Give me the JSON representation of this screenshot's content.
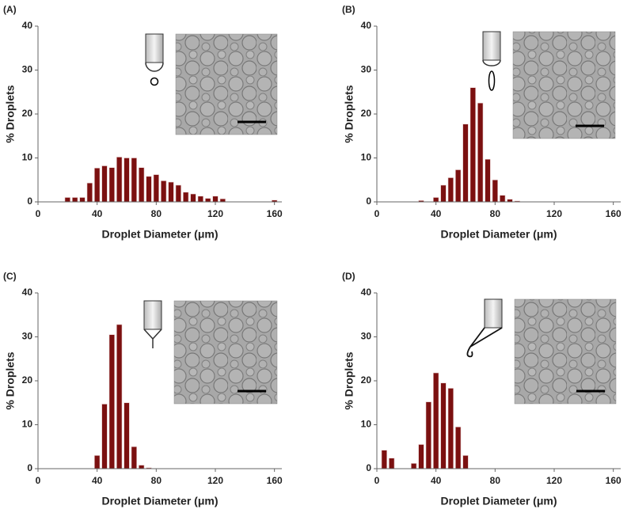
{
  "chart_data": [
    {
      "type": "bar",
      "title": "(A)",
      "xlabel": "Droplet Diameter (μm)",
      "ylabel": "% Droplets",
      "color": "#7b1010",
      "x": [
        20,
        25,
        30,
        35,
        40,
        45,
        50,
        55,
        60,
        65,
        70,
        75,
        80,
        85,
        90,
        95,
        100,
        105,
        110,
        115,
        120,
        125,
        160
      ],
      "values": [
        1,
        1,
        1,
        4.3,
        7.7,
        8.2,
        7.8,
        10.2,
        10,
        10,
        7.8,
        5.8,
        6.2,
        4.8,
        4.5,
        3.8,
        2.2,
        1.8,
        1.3,
        0.8,
        1.3,
        0.7,
        0.4
      ],
      "xlim": [
        0,
        165
      ],
      "ylim": [
        0,
        40
      ],
      "xticks": [
        0,
        40,
        80,
        120,
        160
      ],
      "yticks": [
        0,
        10,
        20,
        30,
        40
      ]
    },
    {
      "type": "bar",
      "title": "(B)",
      "xlabel": "Droplet Diameter (μm)",
      "ylabel": "% Droplets",
      "color": "#7b1010",
      "x": [
        30,
        40,
        45,
        50,
        55,
        60,
        65,
        70,
        75,
        80,
        85,
        90,
        95
      ],
      "values": [
        0.3,
        1,
        3.8,
        5.5,
        7.3,
        17.7,
        26,
        22.5,
        9.7,
        5,
        1.5,
        0.6,
        0.2
      ],
      "xlim": [
        0,
        165
      ],
      "ylim": [
        0,
        40
      ],
      "xticks": [
        0,
        40,
        80,
        120,
        160
      ],
      "yticks": [
        0,
        10,
        20,
        30,
        40
      ]
    },
    {
      "type": "bar",
      "title": "(C)",
      "xlabel": "Droplet Diameter (μm)",
      "ylabel": "% Droplets",
      "color": "#7b1010",
      "x": [
        40,
        45,
        50,
        55,
        60,
        65,
        70,
        75
      ],
      "values": [
        3,
        14.7,
        30.5,
        32.8,
        15,
        5,
        0.8,
        0.2
      ],
      "xlim": [
        0,
        165
      ],
      "ylim": [
        0,
        40
      ],
      "xticks": [
        0,
        40,
        80,
        120,
        160
      ],
      "yticks": [
        0,
        10,
        20,
        30,
        40
      ]
    },
    {
      "type": "bar",
      "title": "(D)",
      "xlabel": "Droplet Diameter (μm)",
      "ylabel": "% Droplets",
      "color": "#7b1010",
      "x": [
        5,
        10,
        25,
        30,
        35,
        40,
        45,
        50,
        55,
        60
      ],
      "values": [
        4.2,
        2.4,
        1.2,
        5.5,
        15.2,
        21.8,
        19.5,
        18.3,
        9.5,
        3
      ],
      "xlim": [
        0,
        165
      ],
      "ylim": [
        0,
        40
      ],
      "xticks": [
        0,
        40,
        80,
        120,
        160
      ],
      "yticks": [
        0,
        10,
        20,
        30,
        40
      ]
    }
  ]
}
